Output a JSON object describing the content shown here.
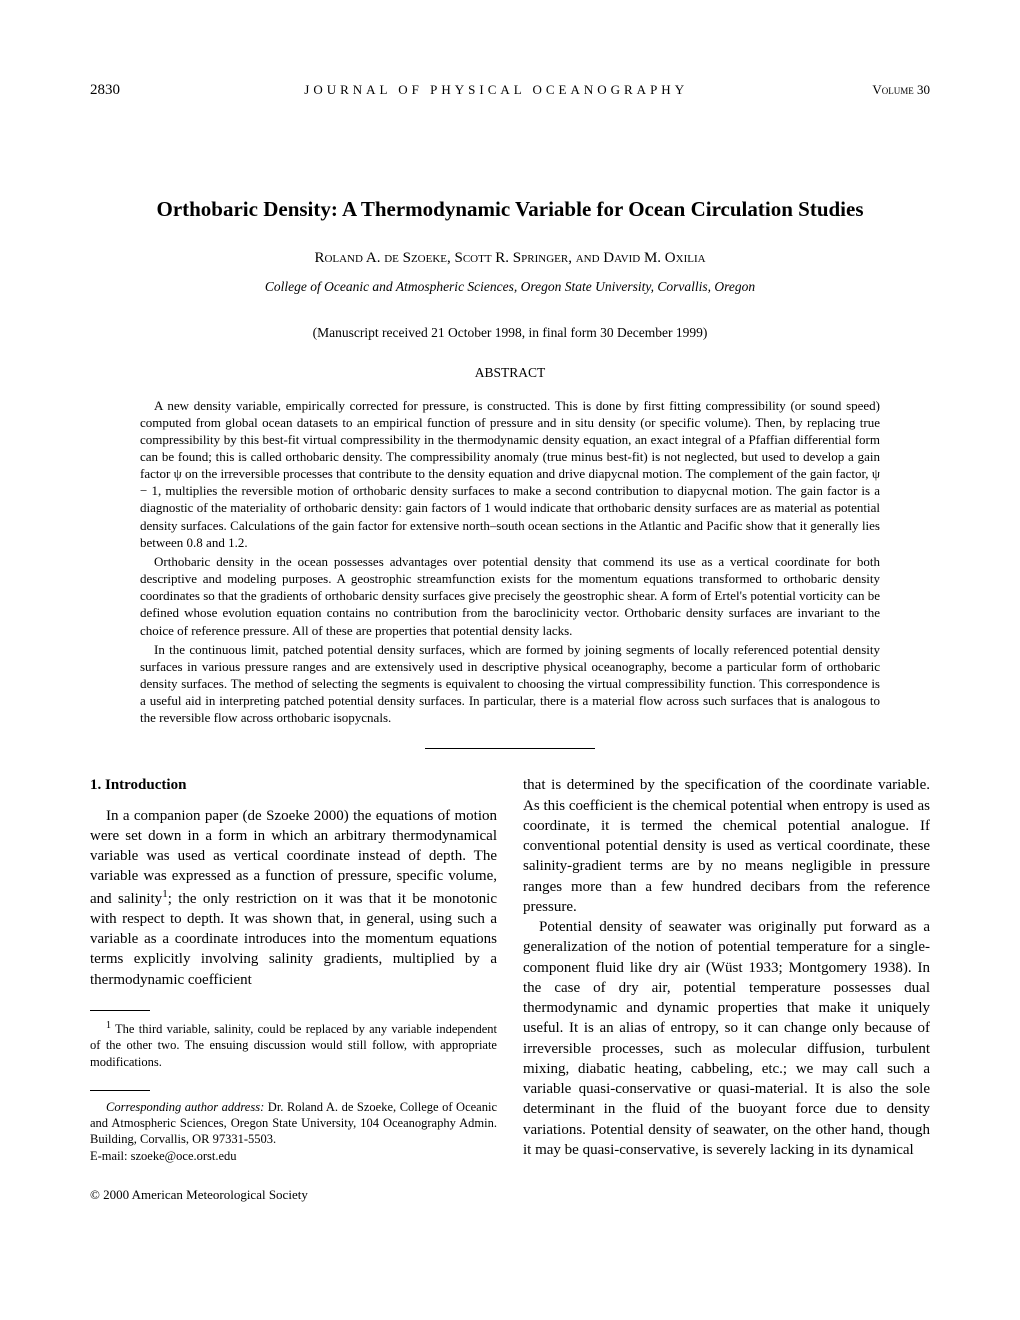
{
  "header": {
    "page_number": "2830",
    "journal": "JOURNAL OF PHYSICAL OCEANOGRAPHY",
    "volume_label": "Volume",
    "volume_number": "30"
  },
  "title": "Orthobaric Density: A Thermodynamic Variable for Ocean Circulation Studies",
  "authors": "Roland A. de Szoeke, Scott R. Springer, and David M. Oxilia",
  "affiliation": "College of Oceanic and Atmospheric Sciences, Oregon State University, Corvallis, Oregon",
  "manuscript_info": "(Manuscript received 21 October 1998, in final form 30 December 1999)",
  "abstract_label": "ABSTRACT",
  "abstract": {
    "p1": "A new density variable, empirically corrected for pressure, is constructed. This is done by first fitting compressibility (or sound speed) computed from global ocean datasets to an empirical function of pressure and in situ density (or specific volume). Then, by replacing true compressibility by this best-fit virtual compressibility in the thermodynamic density equation, an exact integral of a Pfaffian differential form can be found; this is called orthobaric density. The compressibility anomaly (true minus best-fit) is not neglected, but used to develop a gain factor ψ on the irreversible processes that contribute to the density equation and drive diapycnal motion. The complement of the gain factor, ψ − 1, multiplies the reversible motion of orthobaric density surfaces to make a second contribution to diapycnal motion. The gain factor is a diagnostic of the materiality of orthobaric density: gain factors of 1 would indicate that orthobaric density surfaces are as material as potential density surfaces. Calculations of the gain factor for extensive north–south ocean sections in the Atlantic and Pacific show that it generally lies between 0.8 and 1.2.",
    "p2": "Orthobaric density in the ocean possesses advantages over potential density that commend its use as a vertical coordinate for both descriptive and modeling purposes. A geostrophic streamfunction exists for the momentum equations transformed to orthobaric density coordinates so that the gradients of orthobaric density surfaces give precisely the geostrophic shear. A form of Ertel's potential vorticity can be defined whose evolution equation contains no contribution from the baroclinicity vector. Orthobaric density surfaces are invariant to the choice of reference pressure. All of these are properties that potential density lacks.",
    "p3": "In the continuous limit, patched potential density surfaces, which are formed by joining segments of locally referenced potential density surfaces in various pressure ranges and are extensively used in descriptive physical oceanography, become a particular form of orthobaric density surfaces. The method of selecting the segments is equivalent to choosing the virtual compressibility function. This correspondence is a useful aid in interpreting patched potential density surfaces. In particular, there is a material flow across such surfaces that is analogous to the reversible flow across orthobaric isopycnals."
  },
  "section1": {
    "heading": "1. Introduction",
    "p1a": "In a companion paper (de Szoeke 2000) the equations of motion were set down in a form in which an arbitrary thermodynamical variable was used as vertical coordinate instead of depth. The variable was expressed as a function of pressure, specific volume, and salinity",
    "p1b": "; the only restriction on it was that it be monotonic with respect to depth. It was shown that, in general, using such a variable as a coordinate introduces into the momentum equations terms explicitly involving salinity gradients, multiplied by a thermodynamic coefficient",
    "p2": "that is determined by the specification of the coordinate variable. As this coefficient is the chemical potential when entropy is used as coordinate, it is termed the chemical potential analogue. If conventional potential density is used as vertical coordinate, these salinity-gradient terms are by no means negligible in pressure ranges more than a few hundred decibars from the reference pressure.",
    "p3": "Potential density of seawater was originally put forward as a generalization of the notion of potential temperature for a single-component fluid like dry air (Wüst 1933; Montgomery 1938). In the case of dry air, potential temperature possesses dual thermodynamic and dynamic properties that make it uniquely useful. It is an alias of entropy, so it can change only because of irreversible processes, such as molecular diffusion, turbulent mixing, diabatic heating, cabbeling, etc.; we may call such a variable quasi-conservative or quasi-material. It is also the sole determinant in the fluid of the buoyant force due to density variations. Potential density of seawater, on the other hand, though it may be quasi-conservative, is severely lacking in its dynamical"
  },
  "footnote1": {
    "marker": "1",
    "text": "The third variable, salinity, could be replaced by any variable independent of the other two. The ensuing discussion would still follow, with appropriate modifications."
  },
  "corresponding": {
    "label": "Corresponding author address:",
    "text": " Dr. Roland A. de Szoeke, College of Oceanic and Atmospheric Sciences, Oregon State University, 104 Oceanography Admin. Building, Corvallis, OR 97331-5503.",
    "email_label": "E-mail: ",
    "email": "szoeke@oce.orst.edu"
  },
  "copyright": "© 2000 American Meteorological Society"
}
